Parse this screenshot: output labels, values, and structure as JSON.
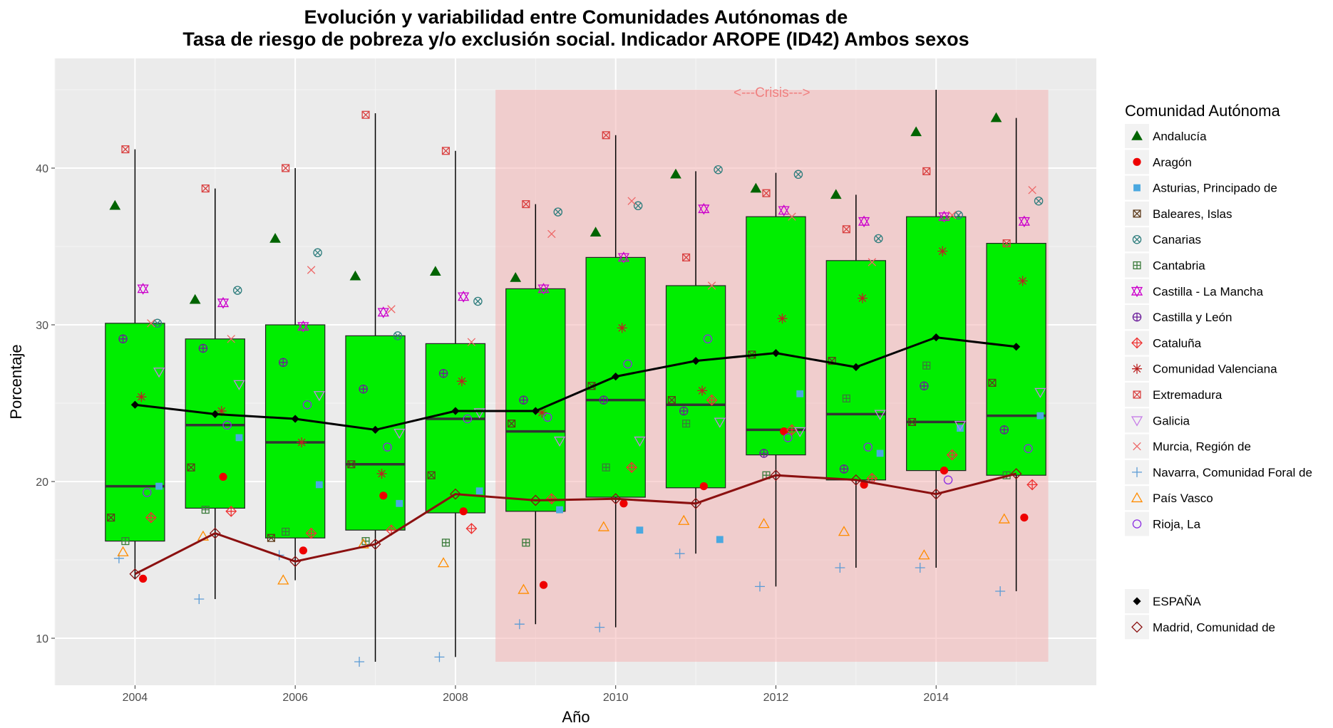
{
  "chart_data": {
    "type": "boxplot",
    "title_line1": "Evolución y variabilidad entre Comunidades Autónomas de",
    "title_line2": "Tasa de riesgo de pobreza y/o exclusión social. Indicador AROPE (ID42) Ambos sexos",
    "xlabel": "Año",
    "ylabel": "Porcentaje",
    "xlim": [
      2003,
      2016
    ],
    "ylim": [
      7,
      47
    ],
    "x_ticks": [
      2004,
      2006,
      2008,
      2010,
      2012,
      2014
    ],
    "y_ticks": [
      10,
      20,
      30,
      40
    ],
    "grid": true,
    "legend_position": "right",
    "crisis": {
      "label": "<---Crisis--->",
      "x_start": 2008.5,
      "x_end": 2015.4,
      "y_min": 8.5,
      "y_max": 45,
      "color": "#f4b4b4"
    },
    "box_color": "#00ee00",
    "boxes": [
      {
        "year": 2004,
        "min": 13.8,
        "q1": 16.2,
        "median": 19.7,
        "q3": 30.1,
        "max": 41.2
      },
      {
        "year": 2005,
        "min": 12.5,
        "q1": 18.3,
        "median": 23.6,
        "q3": 29.1,
        "max": 38.7
      },
      {
        "year": 2006,
        "min": 13.7,
        "q1": 16.4,
        "median": 22.5,
        "q3": 30.0,
        "max": 40.0
      },
      {
        "year": 2007,
        "min": 8.5,
        "q1": 16.9,
        "median": 21.1,
        "q3": 29.3,
        "max": 43.5
      },
      {
        "year": 2008,
        "min": 8.8,
        "q1": 18.0,
        "median": 24.0,
        "q3": 28.8,
        "max": 41.1
      },
      {
        "year": 2009,
        "min": 10.9,
        "q1": 18.1,
        "median": 23.2,
        "q3": 32.3,
        "max": 37.7
      },
      {
        "year": 2010,
        "min": 10.7,
        "q1": 19.0,
        "median": 25.2,
        "q3": 34.3,
        "max": 42.1
      },
      {
        "year": 2011,
        "min": 15.4,
        "q1": 19.6,
        "median": 24.9,
        "q3": 32.5,
        "max": 39.8
      },
      {
        "year": 2012,
        "min": 13.3,
        "q1": 21.7,
        "median": 23.3,
        "q3": 36.9,
        "max": 39.7
      },
      {
        "year": 2013,
        "min": 14.5,
        "q1": 20.1,
        "median": 24.3,
        "q3": 34.1,
        "max": 38.3
      },
      {
        "year": 2014,
        "min": 14.5,
        "q1": 20.7,
        "median": 23.8,
        "q3": 36.9,
        "max": 45.0
      },
      {
        "year": 2015,
        "min": 13.0,
        "q1": 20.4,
        "median": 24.2,
        "q3": 35.2,
        "max": 43.2
      }
    ],
    "years": [
      2004,
      2005,
      2006,
      2007,
      2008,
      2009,
      2010,
      2011,
      2012,
      2013,
      2014,
      2015
    ],
    "lines": [
      {
        "name": "ESPAÑA",
        "color": "#000000",
        "values": [
          24.9,
          24.3,
          24.0,
          23.3,
          24.5,
          24.5,
          26.7,
          27.7,
          28.2,
          27.3,
          29.2,
          28.6
        ]
      },
      {
        "name": "Madrid, Comunidad de",
        "color": "#8b1010",
        "values": [
          14.1,
          16.7,
          14.9,
          16.0,
          19.2,
          18.8,
          18.9,
          18.6,
          20.4,
          20.1,
          19.2,
          20.5
        ]
      }
    ],
    "legend_title": "Comunidad Autónoma",
    "series": [
      {
        "name": "Andalucía",
        "color": "#006400",
        "shape": "triangle-filled",
        "offset": -0.25,
        "values": [
          37.6,
          31.6,
          35.5,
          33.1,
          33.4,
          33.0,
          35.9,
          39.6,
          38.7,
          38.3,
          42.3,
          43.2
        ]
      },
      {
        "name": "Aragón",
        "color": "#ee0000",
        "shape": "circle-filled",
        "offset": 0.1,
        "values": [
          13.8,
          20.3,
          15.6,
          19.1,
          18.1,
          13.4,
          18.6,
          19.7,
          23.2,
          19.8,
          20.7,
          17.7
        ]
      },
      {
        "name": "Asturias, Principado de",
        "color": "#4aa8e0",
        "shape": "square-filled",
        "offset": 0.3,
        "values": [
          19.7,
          22.8,
          19.8,
          18.6,
          19.4,
          18.2,
          16.9,
          16.3,
          25.6,
          21.8,
          23.4,
          24.2
        ]
      },
      {
        "name": "Baleares, Islas",
        "color": "#5c3a1a",
        "shape": "square-cross",
        "offset": -0.3,
        "values": [
          17.7,
          20.9,
          16.4,
          21.1,
          20.4,
          23.7,
          26.1,
          25.2,
          28.1,
          27.7,
          23.8,
          26.3
        ]
      },
      {
        "name": "Canarias",
        "color": "#2e7d7d",
        "shape": "circle-x",
        "offset": 0.28,
        "values": [
          30.1,
          32.2,
          34.6,
          29.3,
          31.5,
          37.2,
          37.6,
          39.9,
          39.6,
          35.5,
          37.0,
          37.9
        ]
      },
      {
        "name": "Cantabria",
        "color": "#3a7a3a",
        "shape": "square-plus",
        "offset": -0.12,
        "values": [
          16.2,
          18.2,
          16.8,
          16.2,
          16.1,
          16.1,
          20.9,
          23.7,
          20.4,
          25.3,
          27.4,
          20.4
        ]
      },
      {
        "name": "Castilla - La Mancha",
        "color": "#cc00cc",
        "shape": "star-david",
        "offset": 0.1,
        "values": [
          32.3,
          31.4,
          29.9,
          30.8,
          31.8,
          32.3,
          34.3,
          37.4,
          37.3,
          36.6,
          36.9,
          36.6
        ]
      },
      {
        "name": "Castilla y León",
        "color": "#6a1b9a",
        "shape": "circle-plus",
        "offset": -0.15,
        "values": [
          29.1,
          28.5,
          27.6,
          25.9,
          26.9,
          25.2,
          25.2,
          24.5,
          21.8,
          20.8,
          26.1,
          23.3
        ]
      },
      {
        "name": "Cataluña",
        "color": "#ee3333",
        "shape": "diamond-plus",
        "offset": 0.2,
        "values": [
          17.7,
          18.1,
          16.7,
          16.9,
          17.0,
          18.9,
          20.9,
          25.2,
          23.3,
          20.2,
          21.7,
          19.8
        ]
      },
      {
        "name": "Comunidad Valenciana",
        "color": "#bb2222",
        "shape": "asterisk",
        "offset": 0.08,
        "values": [
          25.4,
          24.5,
          22.5,
          20.5,
          26.4,
          24.4,
          29.8,
          25.8,
          30.4,
          31.7,
          34.7,
          32.8
        ]
      },
      {
        "name": "Extremadura",
        "color": "#d94040",
        "shape": "square-x",
        "offset": -0.12,
        "values": [
          41.2,
          38.7,
          40.0,
          43.4,
          41.1,
          37.7,
          42.1,
          34.3,
          38.4,
          36.1,
          39.8,
          35.2
        ]
      },
      {
        "name": "Galicia",
        "color": "#c77ee8",
        "shape": "triangle-down",
        "offset": 0.3,
        "values": [
          27.0,
          26.2,
          25.5,
          23.1,
          24.4,
          22.6,
          22.6,
          23.8,
          23.2,
          24.3,
          23.6,
          25.7
        ]
      },
      {
        "name": "Murcia, Región de",
        "color": "#ee6666",
        "shape": "x",
        "offset": 0.2,
        "values": [
          30.1,
          29.1,
          33.5,
          31.0,
          28.9,
          35.8,
          37.9,
          32.5,
          36.9,
          34.0,
          37.0,
          38.6
        ]
      },
      {
        "name": "Navarra, Comunidad Foral de",
        "color": "#5b9bd5",
        "shape": "plus",
        "offset": -0.2,
        "values": [
          15.1,
          12.5,
          15.3,
          8.5,
          8.8,
          10.9,
          10.7,
          15.4,
          13.3,
          14.5,
          14.5,
          13.0
        ]
      },
      {
        "name": "País Vasco",
        "color": "#ff8c00",
        "shape": "triangle-open",
        "offset": -0.15,
        "values": [
          15.5,
          16.5,
          13.7,
          16.0,
          14.8,
          13.1,
          17.1,
          17.5,
          17.3,
          16.8,
          15.3,
          17.6
        ]
      },
      {
        "name": "Rioja, La",
        "color": "#8a2be2",
        "shape": "circle-open",
        "offset": 0.15,
        "values": [
          19.3,
          23.6,
          24.9,
          22.2,
          24.0,
          24.1,
          27.5,
          29.1,
          22.8,
          22.2,
          20.1,
          22.1
        ]
      }
    ],
    "legend2": [
      {
        "name": "ESPAÑA",
        "color": "#000000",
        "shape": "diamond-filled"
      },
      {
        "name": "Madrid, Comunidad de",
        "color": "#8b1010",
        "shape": "diamond-open"
      }
    ]
  }
}
